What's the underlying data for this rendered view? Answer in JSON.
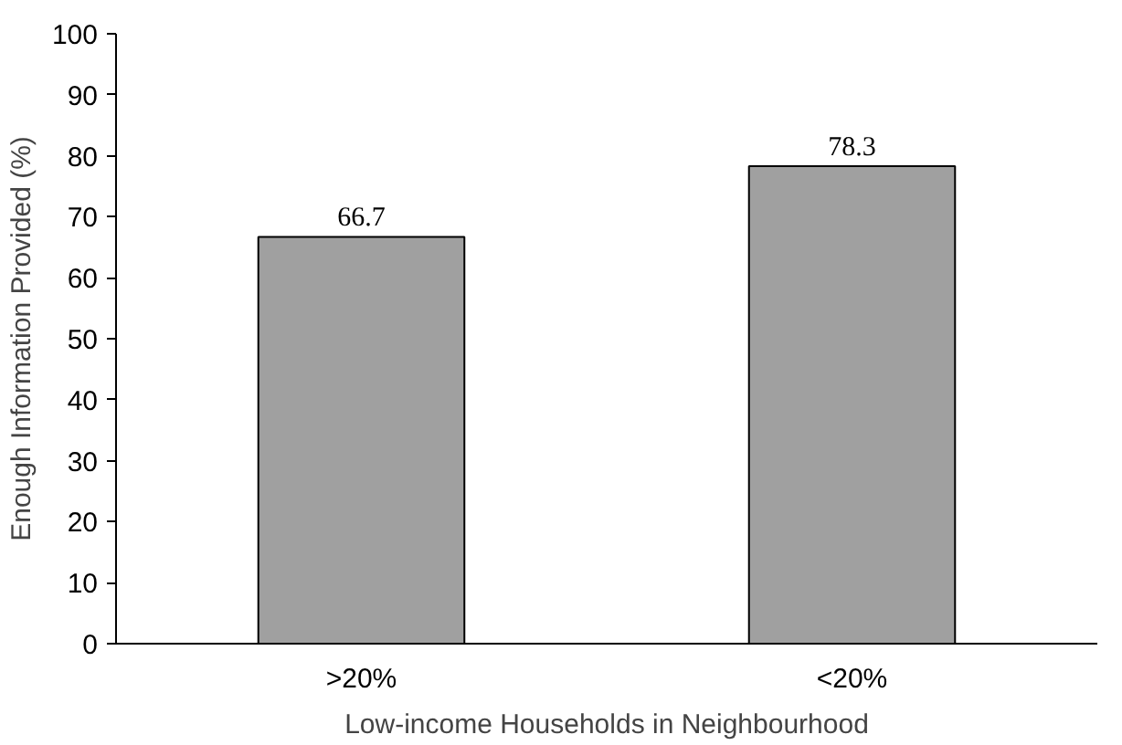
{
  "chart_data": {
    "type": "bar",
    "xlabel": "Low-income Households in Neighbourhood",
    "ylabel": "Enough Information Provided (%)",
    "categories": [
      ">20%",
      "<20%"
    ],
    "values": [
      66.7,
      78.3
    ],
    "color": "#a0a0a0",
    "ylim": [
      0,
      100
    ],
    "yticks": [
      0,
      10,
      20,
      30,
      40,
      50,
      60,
      70,
      80,
      90,
      100
    ],
    "grid": false,
    "data_labels": true
  }
}
